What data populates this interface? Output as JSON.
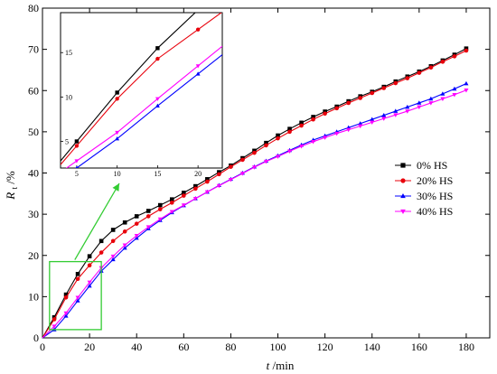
{
  "chart_data": {
    "type": "line",
    "xlabel_var": "t",
    "xlabel_unit": "/min",
    "ylabel_var": "R",
    "ylabel_sub": "t",
    "ylabel_unit": "/%",
    "xlim": [
      0,
      190
    ],
    "ylim": [
      0,
      80
    ],
    "xticks": [
      "0",
      "20",
      "40",
      "60",
      "80",
      "100",
      "120",
      "140",
      "160",
      "180"
    ],
    "yticks": [
      "0",
      "10",
      "20",
      "30",
      "40",
      "50",
      "60",
      "70",
      "80"
    ],
    "legend_position": "right",
    "x": [
      0,
      5,
      10,
      15,
      20,
      25,
      30,
      35,
      40,
      45,
      50,
      55,
      60,
      65,
      70,
      75,
      80,
      85,
      90,
      95,
      100,
      105,
      110,
      115,
      120,
      125,
      130,
      135,
      140,
      145,
      150,
      155,
      160,
      165,
      170,
      175,
      180
    ],
    "series": [
      {
        "name": "0% HS",
        "color": "#000000",
        "marker": "square",
        "values": [
          0,
          5.0,
          10.5,
          15.5,
          19.8,
          23.5,
          26.2,
          28.0,
          29.5,
          30.8,
          32.2,
          33.6,
          35.2,
          36.8,
          38.5,
          40.2,
          41.8,
          43.6,
          45.4,
          47.3,
          49.1,
          50.7,
          52.2,
          53.6,
          54.9,
          56.1,
          57.4,
          58.6,
          59.7,
          60.9,
          62.2,
          63.4,
          64.6,
          65.9,
          67.3,
          68.7,
          70.2
        ]
      },
      {
        "name": "20% HS",
        "color": "#e8000b",
        "marker": "circle",
        "values": [
          0,
          4.5,
          9.8,
          14.3,
          17.6,
          20.7,
          23.5,
          25.8,
          27.7,
          29.5,
          31.2,
          32.8,
          34.5,
          36.2,
          37.9,
          39.7,
          41.5,
          43.2,
          44.9,
          46.7,
          48.4,
          50.0,
          51.5,
          53.0,
          54.4,
          55.7,
          57.0,
          58.2,
          59.4,
          60.6,
          61.8,
          63.0,
          64.3,
          65.6,
          67.0,
          68.3,
          69.7
        ]
      },
      {
        "name": "30% HS",
        "color": "#0000ff",
        "marker": "triangle-up",
        "values": [
          0,
          2.0,
          5.3,
          9.0,
          12.6,
          16.2,
          19.0,
          21.8,
          24.2,
          26.5,
          28.5,
          30.4,
          32.1,
          33.8,
          35.4,
          37.0,
          38.5,
          40.0,
          41.5,
          42.9,
          44.2,
          45.5,
          46.8,
          48.0,
          49.0,
          50.0,
          51.0,
          52.0,
          53.0,
          54.0,
          55.0,
          56.0,
          57.0,
          58.0,
          59.2,
          60.4,
          61.7
        ]
      },
      {
        "name": "40% HS",
        "color": "#ff00ff",
        "marker": "triangle-down",
        "values": [
          0,
          2.8,
          6.0,
          9.8,
          13.5,
          17.0,
          19.8,
          22.5,
          24.8,
          26.9,
          28.8,
          30.6,
          32.2,
          33.8,
          35.4,
          36.9,
          38.4,
          39.9,
          41.4,
          42.8,
          44.0,
          45.3,
          46.5,
          47.6,
          48.6,
          49.6,
          50.5,
          51.4,
          52.3,
          53.2,
          54.1,
          55.0,
          56.0,
          57.0,
          58.0,
          59.0,
          60.1
        ]
      }
    ],
    "zoom_box": {
      "xmin": 3,
      "xmax": 25,
      "ymin": 2,
      "ymax": 18.5,
      "color": "#33cc33"
    },
    "inset": {
      "xlim": [
        3,
        23
      ],
      "ylim": [
        2,
        19.5
      ],
      "xticks": [
        "5",
        "10",
        "15",
        "20"
      ],
      "yticks": [
        "5",
        "10",
        "15"
      ],
      "x": [
        5,
        10,
        15,
        20
      ],
      "series": [
        {
          "values": [
            5.0,
            10.5,
            15.5,
            19.8
          ]
        },
        {
          "values": [
            4.5,
            9.8,
            14.3,
            17.6
          ]
        },
        {
          "values": [
            2.0,
            5.3,
            9.0,
            12.6
          ]
        },
        {
          "values": [
            2.8,
            6.0,
            9.8,
            13.5
          ]
        }
      ]
    }
  }
}
